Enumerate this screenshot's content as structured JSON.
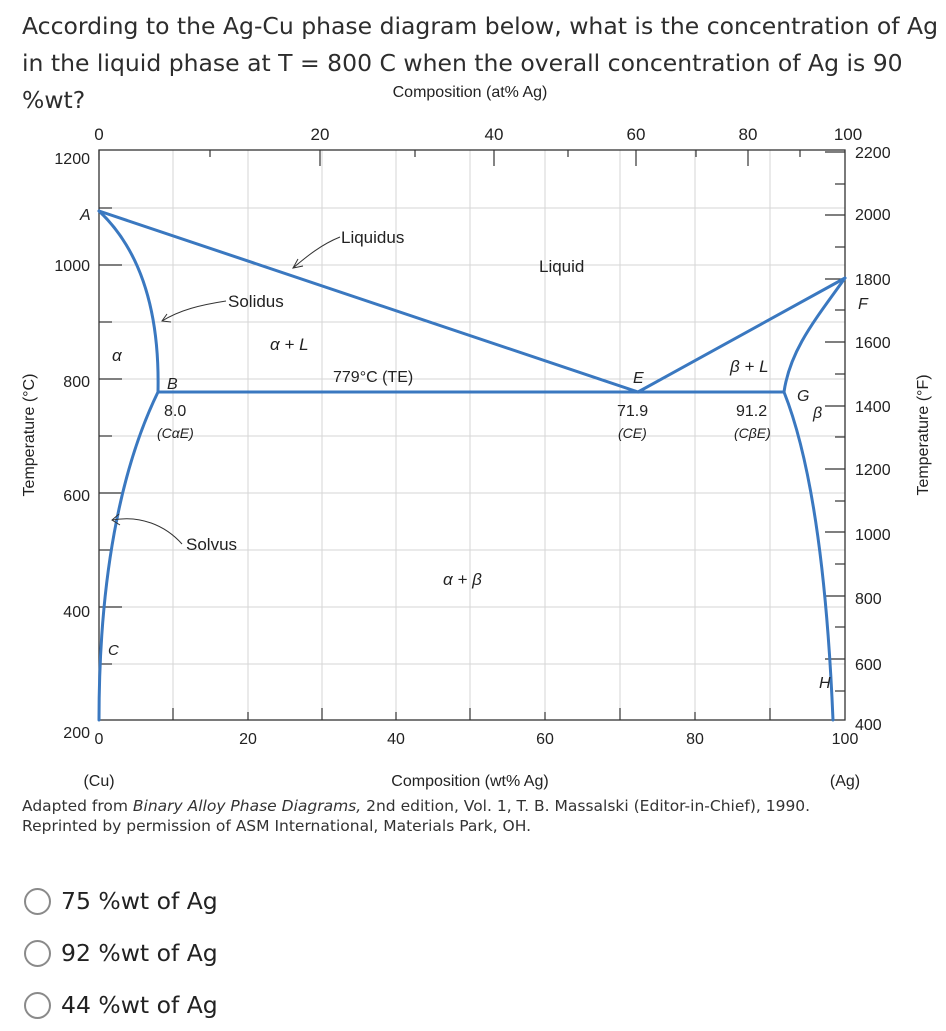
{
  "question": {
    "text": "According to the Ag-Cu phase diagram below, what is the concentration of Ag in the liquid phase at T = 800 C when the overall concentration of Ag is 90 %wt?"
  },
  "chart_data": {
    "type": "phase-diagram",
    "top_axis_title": "Composition (at% Ag)",
    "top_ticks": [
      "0",
      "20",
      "40",
      "60",
      "80",
      "100"
    ],
    "bottom_axis_title": "Composition (wt% Ag)",
    "bottom_ticks": [
      "0",
      "20",
      "40",
      "60",
      "80",
      "100"
    ],
    "bottom_left_label": "(Cu)",
    "bottom_right_label": "(Ag)",
    "left_axis_title": "Temperature (°C)",
    "left_ticks": [
      "1200",
      "1000",
      "800",
      "600",
      "400",
      "200"
    ],
    "right_axis_title": "Temperature (°F)",
    "right_ticks": [
      "2200",
      "2000",
      "1800",
      "1600",
      "1400",
      "1200",
      "1000",
      "800",
      "600",
      "400"
    ],
    "point_labels": [
      "A",
      "B",
      "C",
      "E",
      "F",
      "G",
      "H"
    ],
    "region_labels": [
      "Liquid",
      "α + L",
      "β + L",
      "α",
      "β",
      "α + β"
    ],
    "curve_labels": [
      "Liquidus",
      "Solidus",
      "Solvus"
    ],
    "eutectic_label": "779°C (TE)",
    "eutectic_temperature": 779,
    "eutectic_compositions": [
      {
        "value": "8.0",
        "label": "(CαE)"
      },
      {
        "value": "71.9",
        "label": "(CE)"
      },
      {
        "value": "91.2",
        "label": "(CβE)"
      }
    ],
    "line_color": "#3a78c0"
  },
  "caption": {
    "line1_prefix": "Adapted from ",
    "line1_italic": "Binary Alloy Phase Diagrams,",
    "line1_suffix": " 2nd edition, Vol. 1, T. B. Massalski (Editor-in-Chief), 1990.",
    "line2": "Reprinted by permission of ASM International, Materials Park, OH."
  },
  "options": [
    {
      "label": "75 %wt of Ag"
    },
    {
      "label": "92 %wt of Ag"
    },
    {
      "label": "44 %wt of Ag"
    }
  ]
}
